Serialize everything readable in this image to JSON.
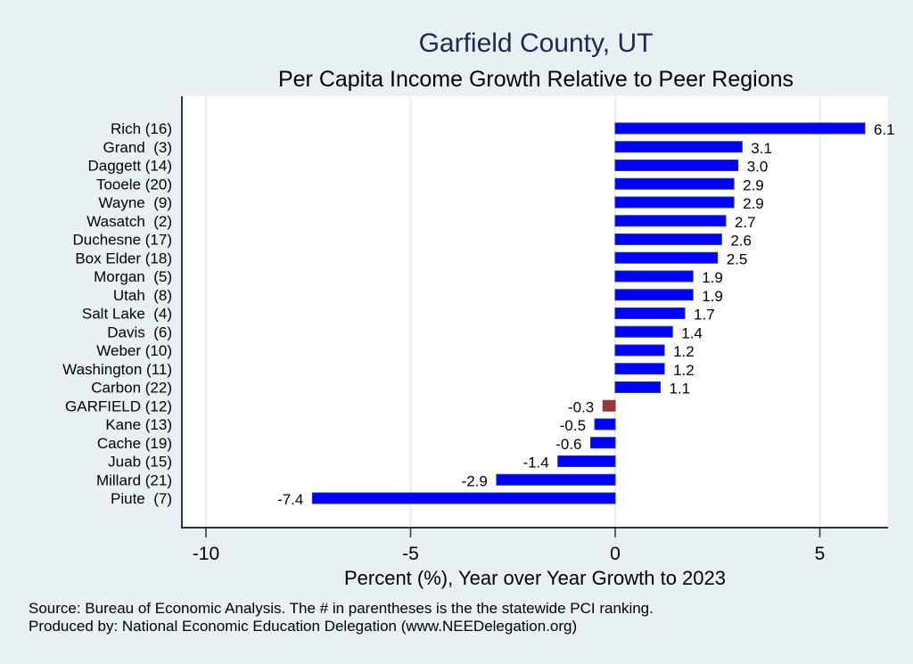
{
  "chart_data": {
    "type": "bar",
    "orientation": "horizontal",
    "title": "Garfield County, UT",
    "subtitle": "Per Capita Income Growth Relative to Peer Regions",
    "xlabel": "Percent (%), Year over Year Growth to 2023",
    "ylabel": "",
    "xlim": [
      -10.6,
      6.7
    ],
    "xticks": [
      -10,
      -5,
      0,
      5
    ],
    "xtick_labels": [
      "-10",
      "-5",
      "0",
      "5"
    ],
    "grid": true,
    "categories": [
      "Rich (16)",
      "Grand  (3)",
      "Daggett (14)",
      "Tooele (20)",
      "Wayne  (9)",
      "Wasatch  (2)",
      "Duchesne (17)",
      "Box Elder (18)",
      "Morgan  (5)",
      "Utah  (8)",
      "Salt Lake  (4)",
      "Davis  (6)",
      "Weber (10)",
      "Washington (11)",
      "Carbon (22)",
      "GARFIELD (12)",
      "Kane (13)",
      "Cache (19)",
      "Juab (15)",
      "Millard (21)",
      "Piute  (7)"
    ],
    "values": [
      6.1,
      3.1,
      3.0,
      2.9,
      2.9,
      2.7,
      2.6,
      2.5,
      1.9,
      1.9,
      1.7,
      1.4,
      1.2,
      1.2,
      1.1,
      -0.3,
      -0.5,
      -0.6,
      -1.4,
      -2.9,
      -7.4
    ],
    "value_labels": [
      "6.1",
      "3.1",
      "3.0",
      "2.9",
      "2.9",
      "2.7",
      "2.6",
      "2.5",
      "1.9",
      "1.9",
      "1.7",
      "1.4",
      "1.2",
      "1.2",
      "1.1",
      "-0.3",
      "-0.5",
      "-0.6",
      "-1.4",
      "-2.9",
      "-7.4"
    ],
    "highlight_index": 15,
    "colors": {
      "bar": "#0000ff",
      "bar_edge": "#1a3a8a",
      "highlight": "#943a3d",
      "background": "#e8f0f3",
      "plot_background": "#ffffff",
      "grid": "#e4eef2",
      "title": "#1a2a4f"
    },
    "footnotes": [
      "Source: Bureau of Economic Analysis. The # in parentheses is the the statewide PCI ranking.",
      "Produced by: National Economic Education Delegation (www.NEEDelegation.org)"
    ]
  }
}
